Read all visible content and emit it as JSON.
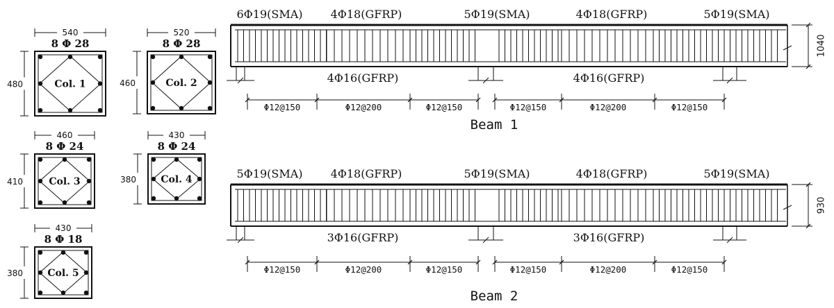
{
  "columns": [
    {
      "width": "540",
      "height": "480",
      "rebar": "8 Φ 28",
      "name": "Col. 1"
    },
    {
      "width": "520",
      "height": "460",
      "rebar": "8 Φ 28",
      "name": "Col. 2"
    },
    {
      "width": "460",
      "height": "410",
      "rebar": "8 Φ 24",
      "name": "Col. 3"
    },
    {
      "width": "430",
      "height": "380",
      "rebar": "8 Φ 24",
      "name": "Col. 4"
    },
    {
      "width": "430",
      "height": "380",
      "rebar": "8 Φ 18",
      "name": "Col. 5"
    }
  ],
  "beams": [
    {
      "title": "Beam  1",
      "height": "1040",
      "top_labels": [
        "6Φ19(SMA)",
        "4Φ18(GFRP)",
        "5Φ19(SMA)",
        "4Φ18(GFRP)",
        "5Φ19(SMA)"
      ],
      "bottom_labels": [
        "4Φ16(GFRP)",
        "4Φ16(GFRP)"
      ],
      "spacing": [
        "Φ12@150",
        "Φ12@200",
        "Φ12@150",
        "Φ12@150",
        "Φ12@200",
        "Φ12@150"
      ]
    },
    {
      "title": "Beam  2",
      "height": "930",
      "top_labels": [
        "5Φ19(SMA)",
        "4Φ18(GFRP)",
        "5Φ19(SMA)",
        "4Φ18(GFRP)",
        "5Φ19(SMA)"
      ],
      "bottom_labels": [
        "3Φ16(GFRP)",
        "3Φ16(GFRP)"
      ],
      "spacing": [
        "Φ12@150",
        "Φ12@200",
        "Φ12@150",
        "Φ12@150",
        "Φ12@200",
        "Φ12@150"
      ]
    }
  ],
  "colors": {
    "ink": "#111111",
    "background": "#ffffff"
  }
}
